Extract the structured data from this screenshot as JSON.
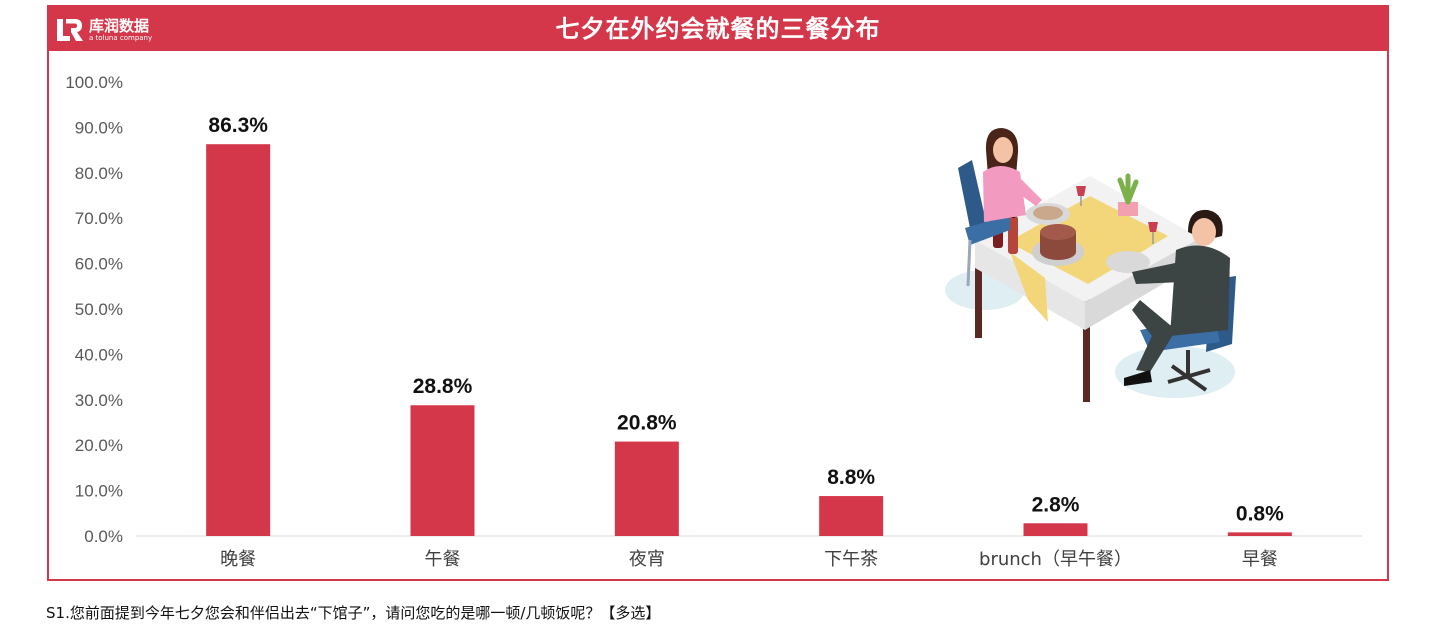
{
  "logo": {
    "name": "库润数据",
    "subtitle": "a toluna company"
  },
  "footnote": "S1.您前面提到今年七夕您会和伴侣出去“下馆子”，请问您吃的是哪一顿/几顿饭呢？【多选】",
  "colors": {
    "accent": "#d5374a",
    "bar": "#d5374a"
  },
  "chart_data": {
    "type": "bar",
    "title": "七夕在外约会就餐的三餐分布",
    "categories": [
      "晚餐",
      "午餐",
      "夜宵",
      "下午茶",
      "brunch（早午餐）",
      "早餐"
    ],
    "values": [
      86.3,
      28.8,
      20.8,
      8.8,
      2.8,
      0.8
    ],
    "value_labels": [
      "86.3%",
      "28.8%",
      "20.8%",
      "8.8%",
      "2.8%",
      "0.8%"
    ],
    "yticks": [
      "0.0%",
      "10.0%",
      "20.0%",
      "30.0%",
      "40.0%",
      "50.0%",
      "60.0%",
      "70.0%",
      "80.0%",
      "90.0%",
      "100.0%"
    ],
    "ylim": [
      0,
      100
    ],
    "grid": false,
    "legend": "none",
    "xlabel": "",
    "ylabel": ""
  }
}
